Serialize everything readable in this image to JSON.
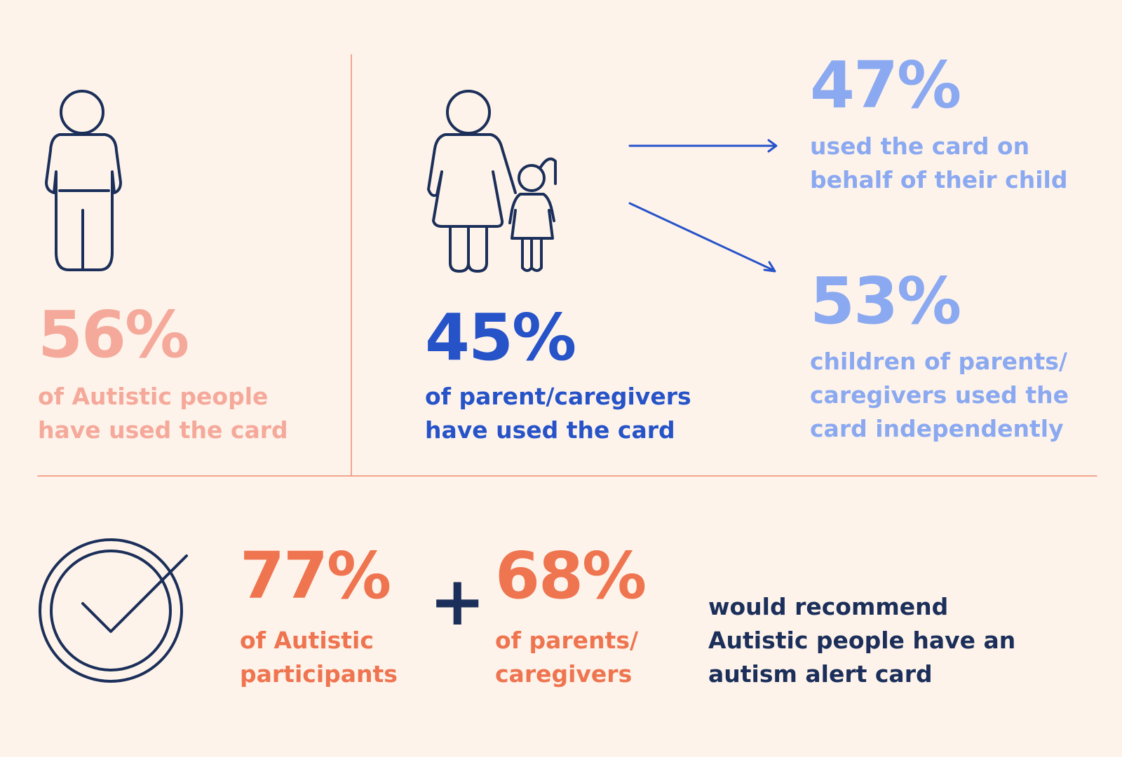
{
  "stats": [
    {
      "value": "56%",
      "label": [
        "of Autistic people",
        "have used the card"
      ]
    },
    {
      "value": "45%",
      "label": [
        "of parent/caregivers",
        "have used the card"
      ]
    },
    {
      "value": "47%",
      "label": [
        "used the card on",
        "behalf of their child"
      ]
    },
    {
      "value": "53%",
      "label": [
        "children of parents/",
        "caregivers used the",
        "card independently"
      ]
    },
    {
      "value": "77%",
      "label": [
        "of Autistic",
        "participants"
      ]
    },
    {
      "value": "68%",
      "label": [
        "of parents/",
        "caregivers"
      ]
    }
  ],
  "plus": "+",
  "conclusion": [
    "would recommend",
    "Autistic people have an",
    "autism alert card"
  ]
}
